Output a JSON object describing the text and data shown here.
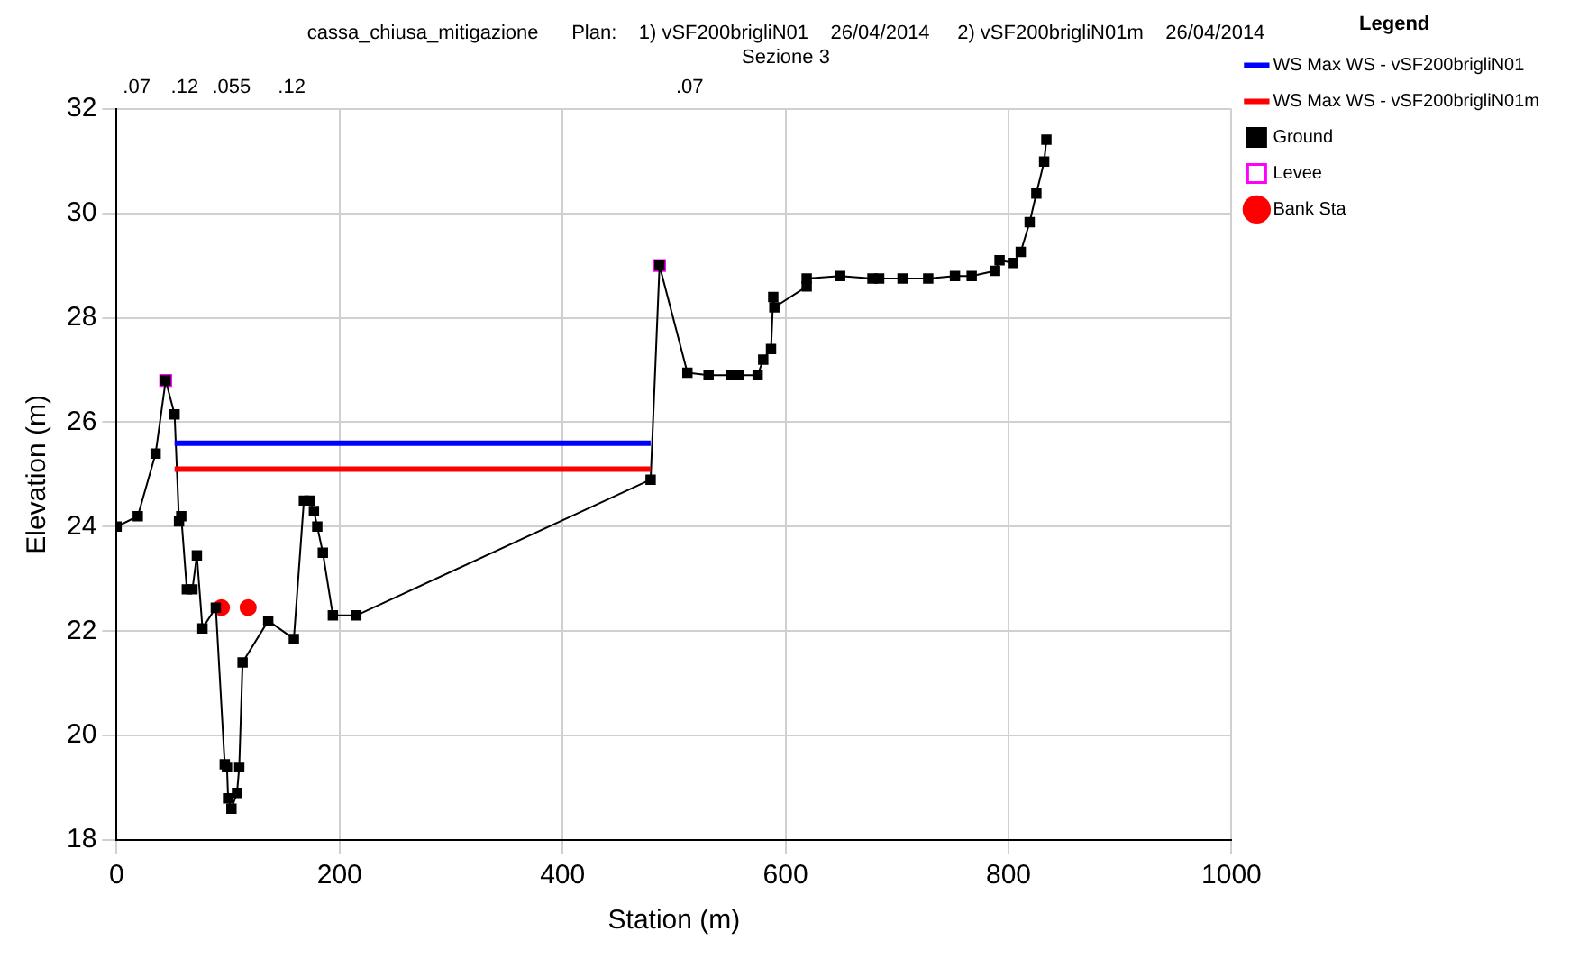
{
  "chart_data": {
    "type": "line",
    "title": "cassa_chiusa_mitigazione      Plan:    1) vSF200brigliN01    26/04/2014     2) vSF200brigliN01m    26/04/2014",
    "subtitle": "Sezione 3",
    "xlabel": "Station (m)",
    "ylabel": "Elevation (m)",
    "legend_title": "Legend",
    "legend": "right",
    "grid": true,
    "xlim": [
      0,
      1000
    ],
    "xticks": [
      0,
      200,
      400,
      600,
      800,
      1000
    ],
    "ylim": [
      18,
      32
    ],
    "yticks": [
      18,
      20,
      22,
      24,
      26,
      28,
      30,
      32
    ],
    "annotations": [
      ".07",
      ".12",
      ".055",
      ".12",
      ".07"
    ],
    "series": [
      {
        "name": "WS Max WS - vSF200brigliN01",
        "type": "line",
        "color": "#0000ff",
        "marker": "none",
        "x": [
          52,
          479
        ],
        "values": [
          25.6,
          25.6
        ]
      },
      {
        "name": "WS Max WS - vSF200brigliN01m",
        "type": "line",
        "color": "#ff0000",
        "marker": "none",
        "x": [
          52,
          479
        ],
        "values": [
          25.1,
          25.1
        ]
      },
      {
        "name": "Ground",
        "color": "#000000",
        "marker": "square",
        "x": [
          0,
          19,
          35,
          44,
          52,
          56,
          58,
          63,
          68,
          72,
          77,
          89,
          97,
          99,
          100,
          103,
          108,
          110,
          113,
          136,
          159,
          168,
          173,
          177,
          180,
          185,
          194,
          215,
          479,
          487,
          512,
          531,
          551,
          558,
          575,
          580,
          587,
          589,
          590,
          619,
          619,
          649,
          678,
          684,
          705,
          728,
          752,
          767,
          788,
          792,
          804,
          811,
          819,
          825,
          832,
          834
        ],
        "values": [
          24.0,
          24.2,
          25.4,
          26.8,
          26.15,
          24.1,
          24.2,
          22.8,
          22.8,
          23.45,
          22.05,
          22.45,
          19.45,
          19.4,
          18.8,
          18.6,
          18.9,
          19.4,
          21.4,
          22.2,
          21.85,
          24.5,
          24.5,
          24.3,
          24.0,
          23.5,
          22.3,
          22.3,
          24.9,
          29.0,
          26.95,
          26.9,
          26.9,
          26.9,
          26.9,
          27.2,
          27.4,
          28.4,
          28.2,
          28.6,
          28.75,
          28.8,
          28.75,
          28.75,
          28.75,
          28.75,
          28.8,
          28.8,
          28.9,
          29.1,
          29.05,
          29.26,
          29.83,
          30.38,
          30.99,
          31.41
        ]
      },
      {
        "name": "Levee",
        "type": "scatter",
        "color": "#ff00ff",
        "marker": "square",
        "x": [
          44,
          487
        ],
        "values": [
          26.8,
          29.0
        ]
      },
      {
        "name": "Bank Sta",
        "type": "scatter",
        "color": "#ff0000",
        "marker": "circle",
        "x": [
          94,
          118
        ],
        "values": [
          22.45,
          22.45
        ]
      }
    ]
  }
}
